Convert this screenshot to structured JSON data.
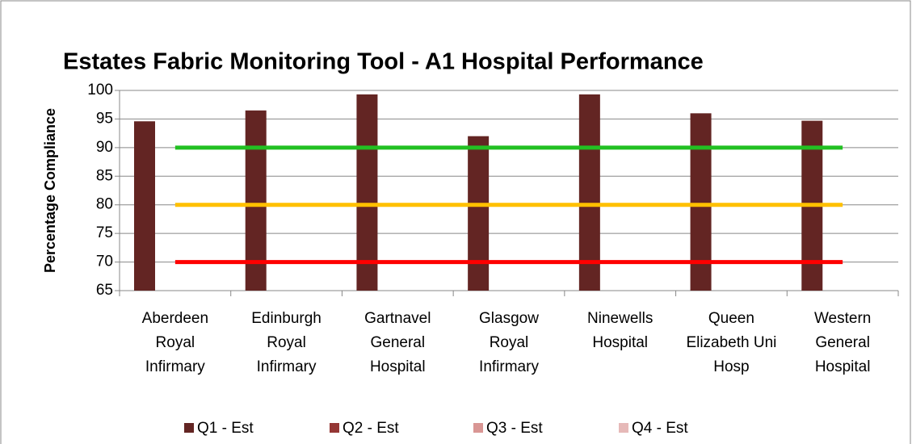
{
  "chart_data": {
    "type": "bar",
    "title": "Estates Fabric Monitoring Tool - A1 Hospital Performance",
    "y_label": "Percentage Compliance",
    "categories": [
      "Aberdeen Royal Infirmary",
      "Edinburgh Royal Infirmary",
      "Gartnavel General Hospital",
      "Glasgow Royal Infirmary",
      "Ninewells Hospital",
      "Queen Elizabeth Uni Hosp",
      "Western General Hospital"
    ],
    "series": [
      {
        "name": "Q1 - Est",
        "color": "#632523",
        "values": [
          94.6,
          96.5,
          99.3,
          92.0,
          99.3,
          96.0,
          94.7
        ]
      },
      {
        "name": "Q2 - Est",
        "color": "#953735",
        "values": [
          null,
          null,
          null,
          null,
          null,
          null,
          null
        ]
      },
      {
        "name": "Q3 - Est",
        "color": "#d99694",
        "values": [
          null,
          null,
          null,
          null,
          null,
          null,
          null
        ]
      },
      {
        "name": "Q4 - Est",
        "color": "#e6b9b8",
        "values": [
          null,
          null,
          null,
          null,
          null,
          null,
          null
        ]
      }
    ],
    "reference_lines": [
      {
        "value": 90,
        "color": "#22c022"
      },
      {
        "value": 80,
        "color": "#ffc000"
      },
      {
        "value": 70,
        "color": "#ff0000"
      }
    ],
    "ylim": [
      65,
      100
    ],
    "yticks": [
      65,
      70,
      75,
      80,
      85,
      90,
      95,
      100
    ],
    "grid": true,
    "legend": "bottom"
  }
}
